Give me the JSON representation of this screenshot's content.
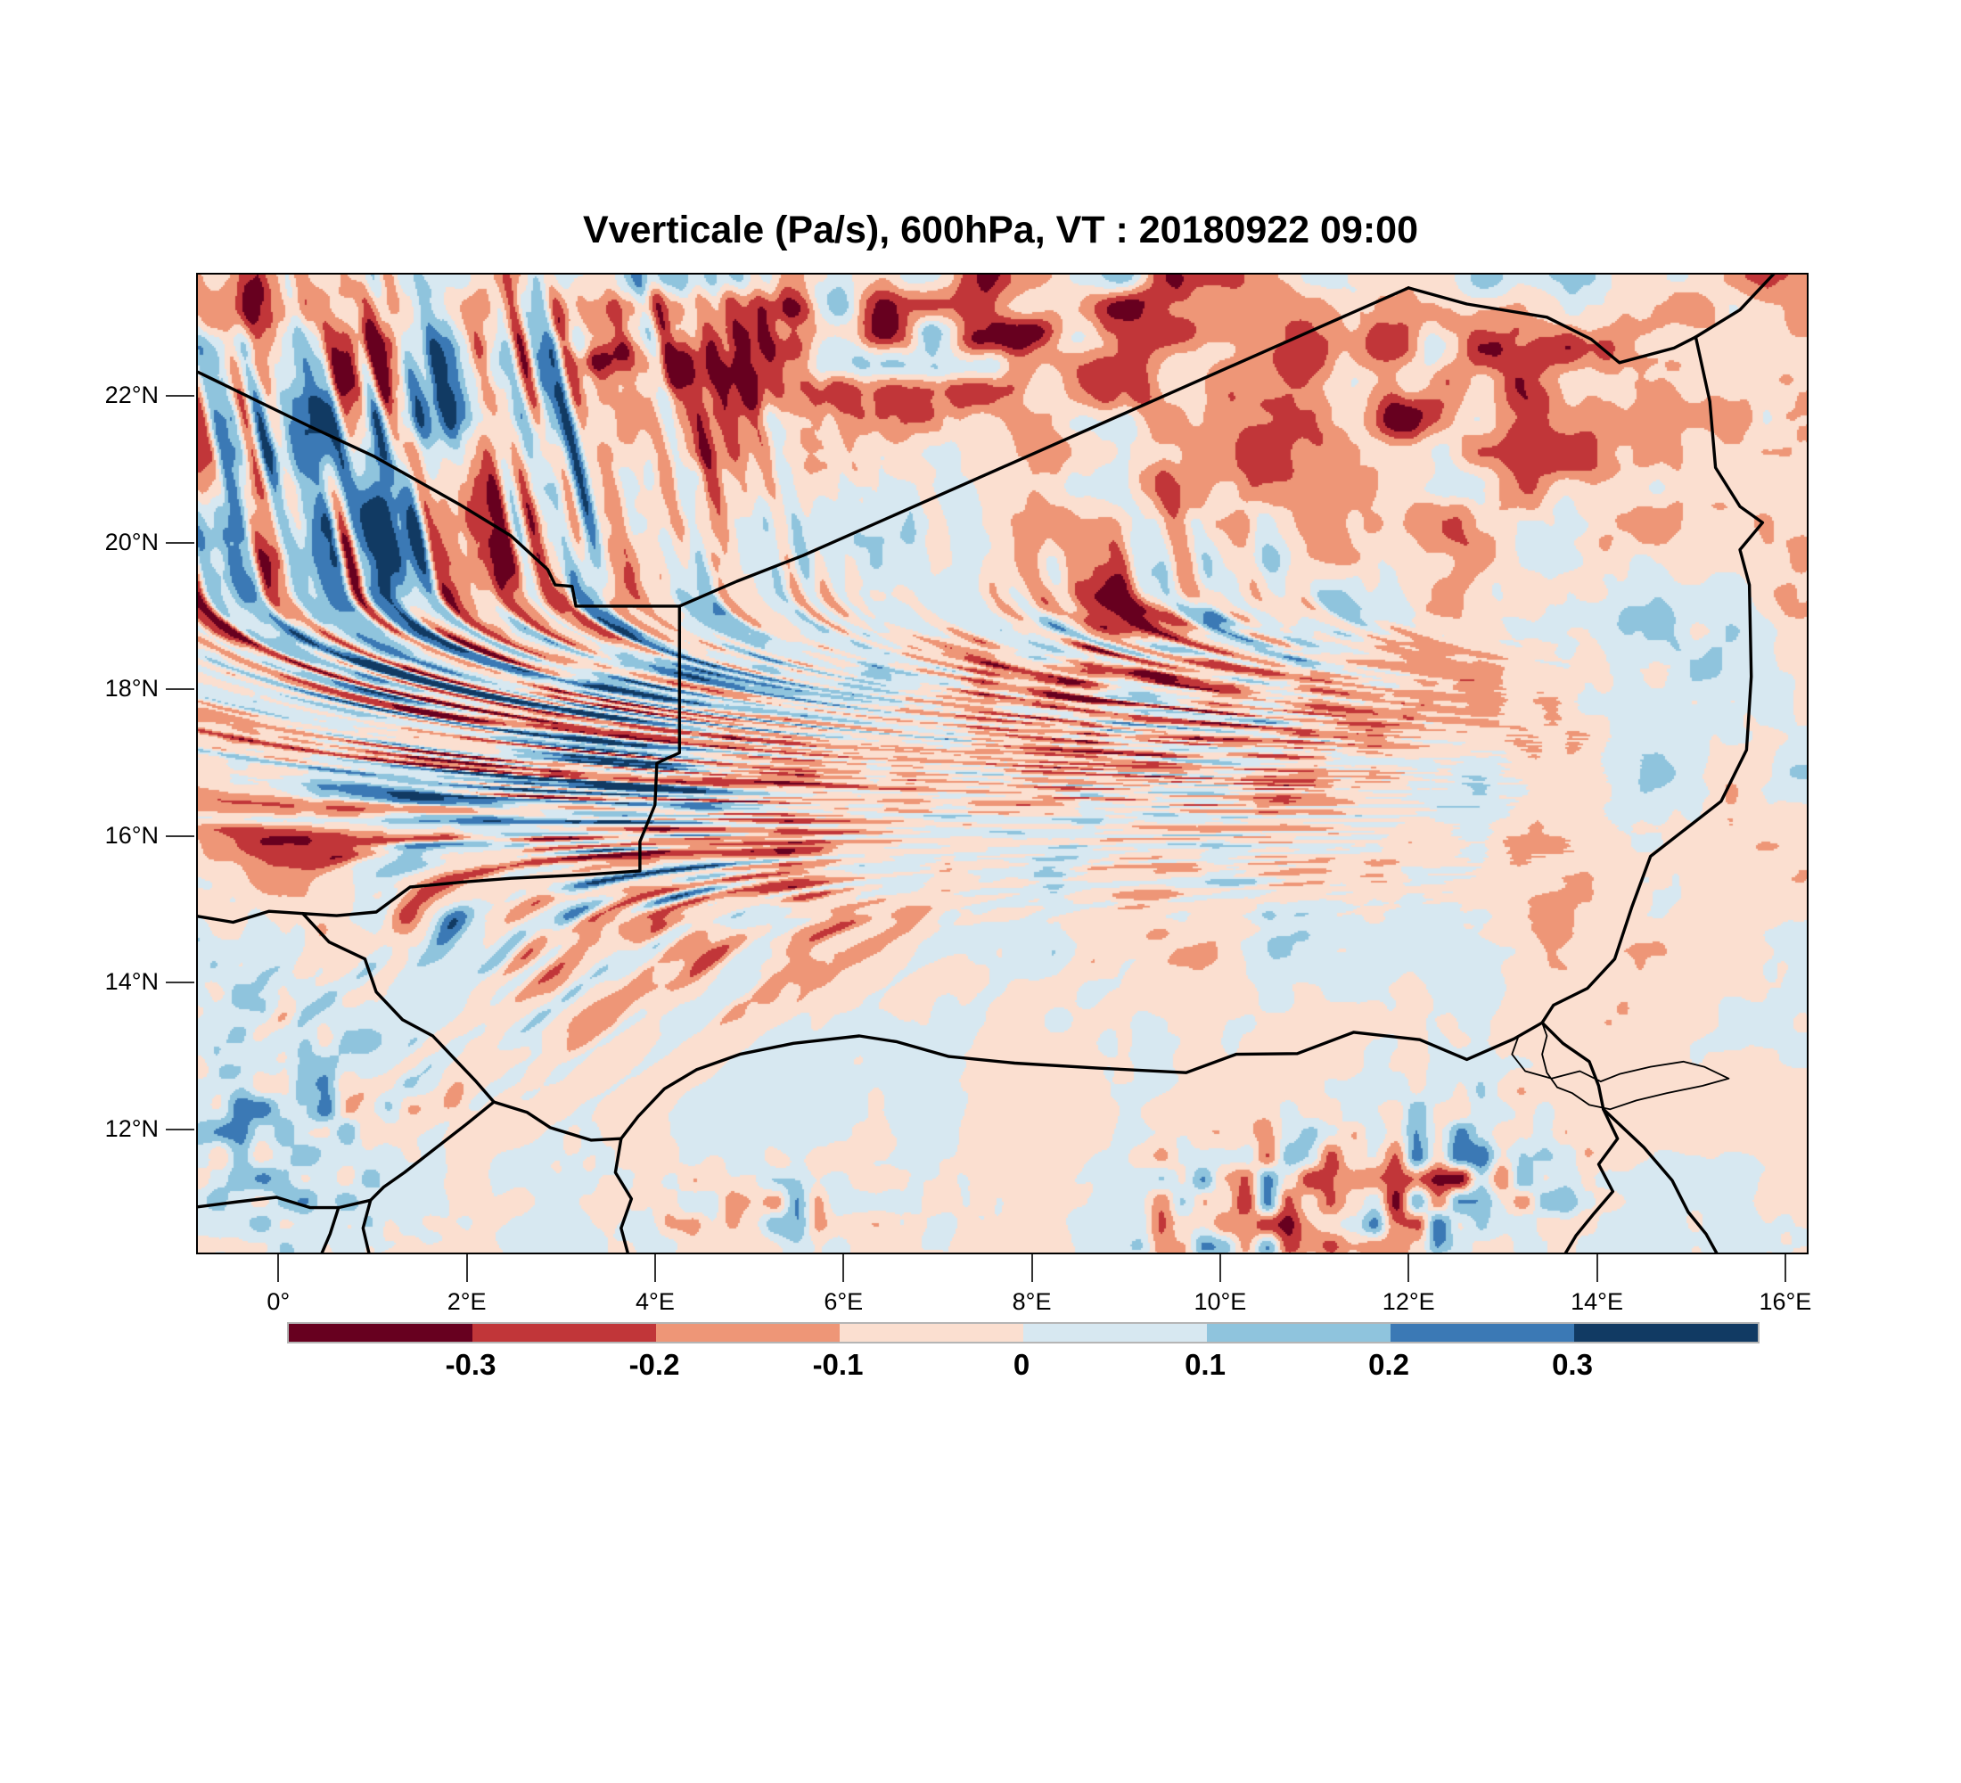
{
  "title": "Vverticale (Pa/s), 600hPa, VT : 20180922  09:00",
  "axes": {
    "y_ticks": [
      {
        "label": "22°N",
        "lat": 22
      },
      {
        "label": "20°N",
        "lat": 20
      },
      {
        "label": "18°N",
        "lat": 18
      },
      {
        "label": "16°N",
        "lat": 16
      },
      {
        "label": "14°N",
        "lat": 14
      },
      {
        "label": "12°N",
        "lat": 12
      }
    ],
    "x_ticks": [
      {
        "label": "0°",
        "lon": 0
      },
      {
        "label": "2°E",
        "lon": 2
      },
      {
        "label": "4°E",
        "lon": 4
      },
      {
        "label": "6°E",
        "lon": 6
      },
      {
        "label": "8°E",
        "lon": 8
      },
      {
        "label": "10°E",
        "lon": 10
      },
      {
        "label": "12°E",
        "lon": 12
      },
      {
        "label": "14°E",
        "lon": 14
      },
      {
        "label": "16°E",
        "lon": 16
      }
    ]
  },
  "colorbar": {
    "tick_labels": [
      "-0.3",
      "-0.2",
      "-0.1",
      "0",
      "0.1",
      "0.2",
      "0.3"
    ],
    "colors": [
      "#67001f",
      "#c13639",
      "#ee9677",
      "#fbdfd0",
      "#d7e8f1",
      "#8fc4dd",
      "#3b79b5",
      "#113a63"
    ]
  },
  "chart_data": {
    "type": "heatmap",
    "subtype": "filled_contour_map",
    "title": "Vverticale (Pa/s), 600hPa, VT : 20180922  09:00",
    "variable": "Vverticale",
    "units": "Pa/s",
    "pressure_level": "600hPa",
    "valid_time": "20180922 09:00",
    "xlabel": "",
    "ylabel": "",
    "lon_range": [
      -0.87,
      16.21
    ],
    "lat_range": [
      10.35,
      23.68
    ],
    "x_tick_labels": [
      "0°",
      "2°E",
      "4°E",
      "6°E",
      "8°E",
      "10°E",
      "12°E",
      "14°E",
      "16°E"
    ],
    "y_tick_labels": [
      "22°N",
      "20°N",
      "18°N",
      "16°N",
      "14°N",
      "12°N"
    ],
    "contour_levels": [
      -0.3,
      -0.2,
      -0.1,
      0,
      0.1,
      0.2,
      0.3
    ],
    "palette": [
      "#67001f",
      "#c13639",
      "#ee9677",
      "#fbdfd0",
      "#d7e8f1",
      "#8fc4dd",
      "#3b79b5",
      "#113a63"
    ],
    "legend_position": "bottom",
    "grid": false,
    "overlays": [
      "country-borders",
      "lake-chad-outline"
    ],
    "field_description": "Turbulent positive/negative vertical-velocity cells; strongest ±0.4 Pa/s bands over the north-west and northern edge, weak ±0.1 Pa/s background elsewhere"
  }
}
